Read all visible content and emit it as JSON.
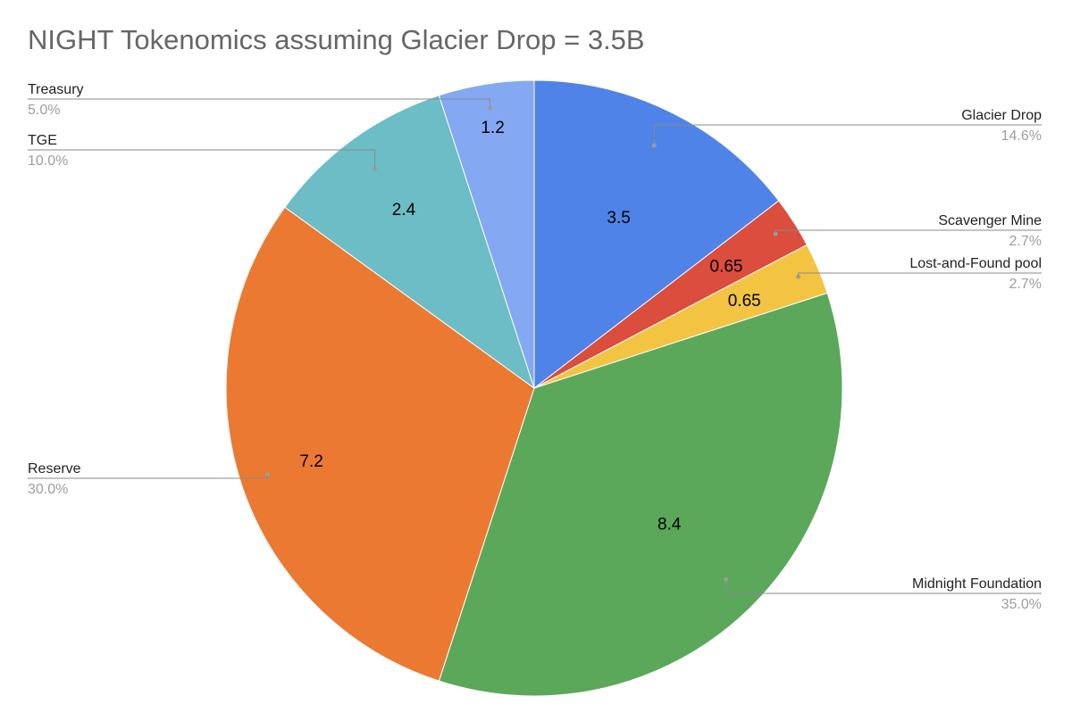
{
  "chart_data": {
    "type": "pie",
    "title": "NIGHT Tokenomics assuming Glacier Drop = 3.5B",
    "slices": [
      {
        "name": "Glacier Drop",
        "value": 3.5,
        "label": "3.5",
        "percent": "14.6%",
        "color": "#5083e8"
      },
      {
        "name": "Scavenger Mine",
        "value": 0.65,
        "label": "0.65",
        "percent": "2.7%",
        "color": "#db4d3c"
      },
      {
        "name": "Lost-and-Found pool",
        "value": 0.65,
        "label": "0.65",
        "percent": "2.7%",
        "color": "#f3c342"
      },
      {
        "name": "Midnight Foundation",
        "value": 8.4,
        "label": "8.4",
        "percent": "35.0%",
        "color": "#5ba85b"
      },
      {
        "name": "Reserve",
        "value": 7.2,
        "label": "7.2",
        "percent": "30.0%",
        "color": "#ec7932"
      },
      {
        "name": "TGE",
        "value": 2.4,
        "label": "2.4",
        "percent": "10.0%",
        "color": "#6cbdc5"
      },
      {
        "name": "Treasury",
        "value": 1.2,
        "label": "1.2",
        "percent": "5.0%",
        "color": "#84a9f2"
      }
    ],
    "start_angle": "12 o'clock",
    "direction": "clockwise",
    "legend": "callouts"
  }
}
